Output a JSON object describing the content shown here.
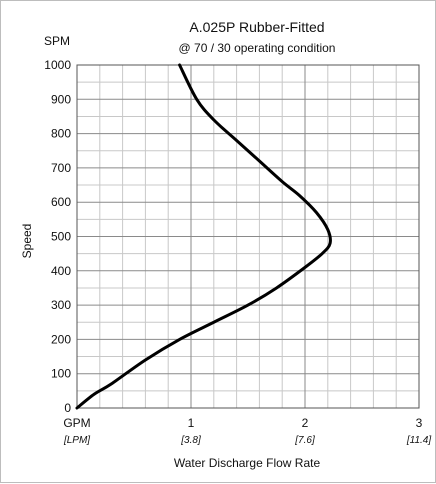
{
  "chart_data": {
    "type": "line",
    "title": "A.025P Rubber-Fitted",
    "subtitle": "@ 70 / 30 operating condition",
    "ylabel": "Speed",
    "yunit": "SPM",
    "xlabel": "Water Discharge Flow Rate",
    "xunit_primary": "GPM",
    "xunit_secondary": "[LPM]",
    "xlim": [
      0,
      3
    ],
    "ylim": [
      0,
      1000
    ],
    "grid": true,
    "x_ticks": [
      {
        "value": 0,
        "label": "GPM",
        "sublabel": "[LPM]"
      },
      {
        "value": 1,
        "label": "1",
        "sublabel": "[3.8]"
      },
      {
        "value": 2,
        "label": "2",
        "sublabel": "[7.6]"
      },
      {
        "value": 3,
        "label": "3",
        "sublabel": "[11.4]"
      }
    ],
    "y_ticks": [
      0,
      100,
      200,
      300,
      400,
      500,
      600,
      700,
      800,
      900,
      1000
    ],
    "series": [
      {
        "x": [
          0.0,
          0.15,
          0.3,
          0.6,
          0.9,
          1.2,
          1.5,
          1.75,
          2.0,
          2.15,
          2.22,
          2.2,
          2.1,
          1.95,
          1.8,
          1.6,
          1.4,
          1.2,
          1.05,
          0.9
        ],
        "y": [
          0,
          40,
          70,
          140,
          200,
          250,
          300,
          350,
          410,
          450,
          480,
          520,
          570,
          620,
          660,
          720,
          780,
          840,
          900,
          1000
        ]
      }
    ]
  }
}
